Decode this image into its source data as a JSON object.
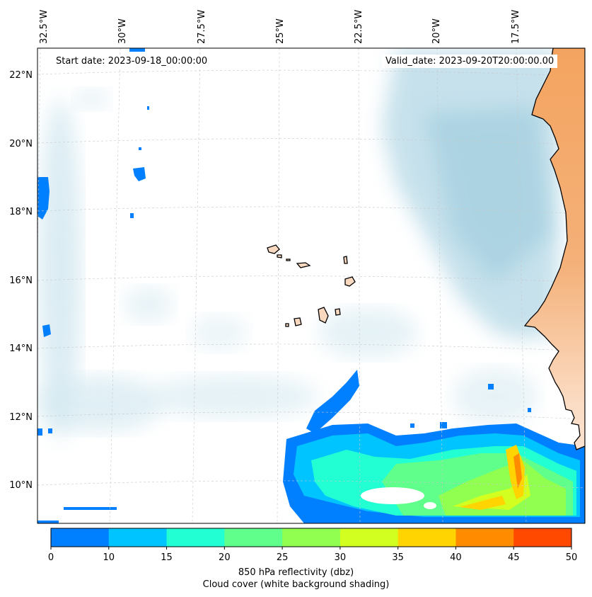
{
  "info": {
    "start_date": "Start date: 2023-09-18_00:00:00",
    "valid_date": "Valid_date: 2023-09-20T20:00:00.00"
  },
  "map": {
    "lon_labels": [
      "32.5°W",
      "30°W",
      "27.5°W",
      "25°W",
      "22.5°W",
      "20°W",
      "17.5°W"
    ],
    "lat_labels": [
      "22°N",
      "20°N",
      "18°N",
      "16°N",
      "14°N",
      "12°N",
      "10°N"
    ],
    "colors": {
      "land": "#f4a460",
      "coast": "#000000",
      "cloud": "#cfe6ef",
      "grid": "#c8c8c8"
    }
  },
  "colorbar": {
    "ticks": [
      "0",
      "10",
      "15",
      "20",
      "25",
      "30",
      "35",
      "40",
      "45",
      "50"
    ],
    "colors": [
      "#0080ff",
      "#00c4ff",
      "#22ffd2",
      "#60ff8c",
      "#90ff50",
      "#d2ff20",
      "#ffd400",
      "#ff8c00",
      "#ff4800"
    ],
    "label_line1": "850 hPa reflectivity (dbz)",
    "label_line2": "Cloud cover (white background shading)"
  }
}
